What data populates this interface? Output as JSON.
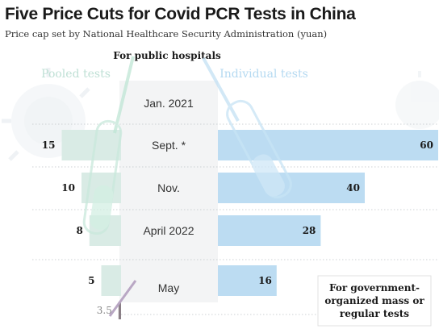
{
  "title": "Five Price Cuts for Covid PCR Tests in China",
  "subtitle": "Price cap set by National Healthcare Security Administration (yuan)",
  "chart_data": {
    "type": "bar",
    "title": "Five Price Cuts for Covid PCR Tests in China",
    "subtitle": "Price cap set by National Healthcare Security Administration (yuan)",
    "center_label": "For public hospitals",
    "categories": [
      "Jan. 2021",
      "Sept. *",
      "Nov.",
      "April 2022",
      "May"
    ],
    "series": [
      {
        "name": "Pooled tests",
        "values": [
          null,
          15,
          10,
          8,
          5
        ],
        "extra": {
          "label": "3.5",
          "value": 3.5
        }
      },
      {
        "name": "Individual tests",
        "values": [
          null,
          60,
          40,
          28,
          16
        ]
      }
    ],
    "note": [
      "For government-",
      "organized mass or",
      "regular tests"
    ],
    "colors": {
      "individual": "#bcdcf2",
      "pooled": "#d9ebe5",
      "pooled_last": "#8a7f86"
    }
  }
}
